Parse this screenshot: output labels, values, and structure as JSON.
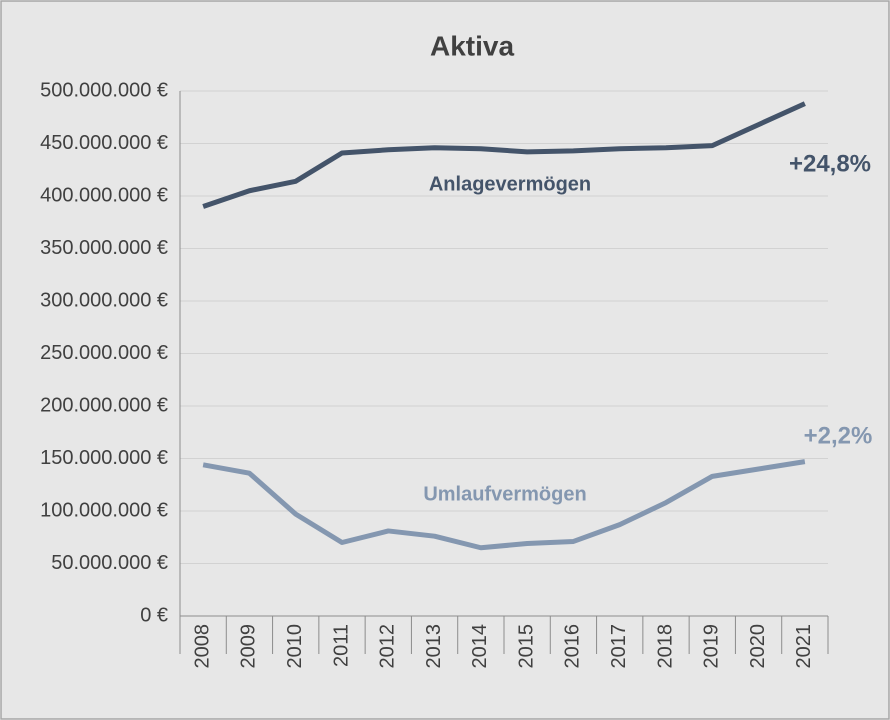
{
  "chart_data": {
    "type": "line",
    "title": "Aktiva",
    "categories": [
      "2008",
      "2009",
      "2010",
      "2011",
      "2012",
      "2013",
      "2014",
      "2015",
      "2016",
      "2017",
      "2018",
      "2019",
      "2020",
      "2021"
    ],
    "series": [
      {
        "name": "Anlagevermögen",
        "color": "#44546a",
        "values": [
          390000000,
          405000000,
          414000000,
          441000000,
          444000000,
          446000000,
          445000000,
          442000000,
          443000000,
          445000000,
          446000000,
          448000000,
          468000000,
          488000000
        ]
      },
      {
        "name": "Umlaufvermögen",
        "color": "#8497b0",
        "values": [
          144000000,
          136000000,
          97000000,
          70000000,
          81000000,
          76000000,
          65000000,
          69000000,
          71000000,
          87000000,
          108000000,
          133000000,
          140000000,
          147000000
        ]
      }
    ],
    "annotations": [
      "+24,8%",
      "+2,2%"
    ],
    "ylim": [
      0,
      500000000
    ],
    "yticks": [
      {
        "value": 0,
        "label": "0 €"
      },
      {
        "value": 50000000,
        "label": "50.000.000 €"
      },
      {
        "value": 100000000,
        "label": "100.000.000 €"
      },
      {
        "value": 150000000,
        "label": "150.000.000 €"
      },
      {
        "value": 200000000,
        "label": "200.000.000 €"
      },
      {
        "value": 250000000,
        "label": "250.000.000 €"
      },
      {
        "value": 300000000,
        "label": "300.000.000 €"
      },
      {
        "value": 350000000,
        "label": "350.000.000 €"
      },
      {
        "value": 400000000,
        "label": "400.000.000 €"
      },
      {
        "value": 450000000,
        "label": "450.000.000 €"
      },
      {
        "value": 500000000,
        "label": "500.000.000 €"
      }
    ],
    "grid": true
  }
}
